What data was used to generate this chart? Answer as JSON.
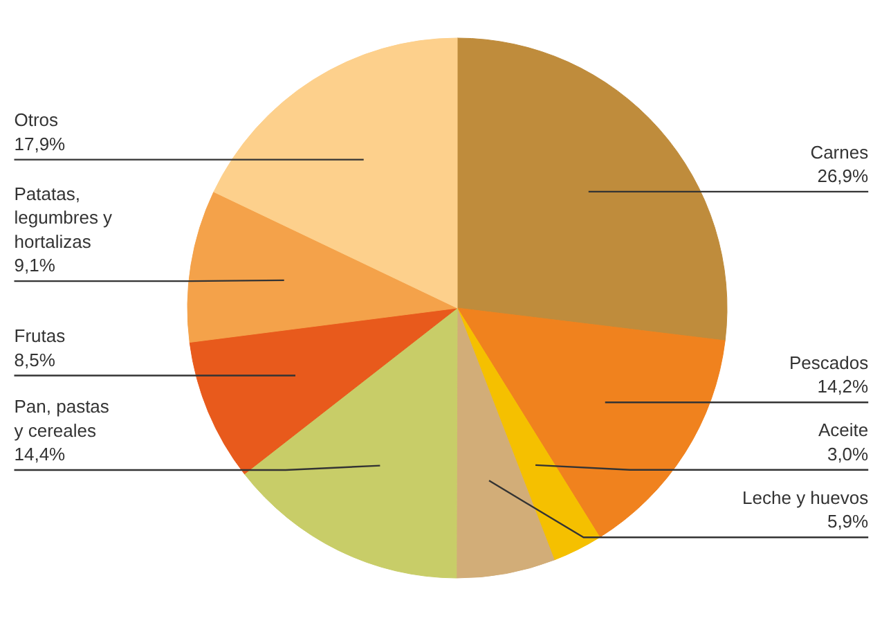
{
  "chart_data": {
    "type": "pie",
    "categories": [
      "Carnes",
      "Pescados",
      "Aceite",
      "Leche y huevos",
      "Pan, pastas y cereales",
      "Frutas",
      "Patatas, legumbres y hortalizas",
      "Otros"
    ],
    "values": [
      26.9,
      14.2,
      3.0,
      5.9,
      14.4,
      8.5,
      9.1,
      17.9
    ],
    "value_labels": [
      "26,9%",
      "14,2%",
      "3,0%",
      "5,9%",
      "14,4%",
      "8,5%",
      "9,1%",
      "17,9%"
    ],
    "colors": [
      "#bf8c3c",
      "#f0821e",
      "#f5c000",
      "#d2ad78",
      "#c8cd68",
      "#e85a1c",
      "#f4a24a",
      "#fdd08c"
    ]
  }
}
